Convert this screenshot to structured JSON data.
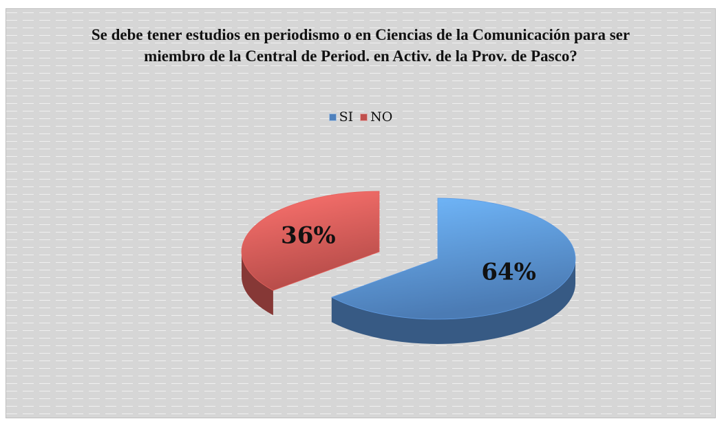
{
  "chart_data": {
    "type": "pie",
    "title": "Se debe tener estudios en periodismo o en Ciencias de la Comunicación para ser miembro de la Central de Period. en Activ. de la Prov. de Pasco?",
    "categories": [
      "SI",
      "NO"
    ],
    "values": [
      64,
      36
    ],
    "value_labels": [
      "64%",
      "36%"
    ],
    "colors": [
      "#4f81bd",
      "#c0504d"
    ],
    "legend": "top"
  }
}
